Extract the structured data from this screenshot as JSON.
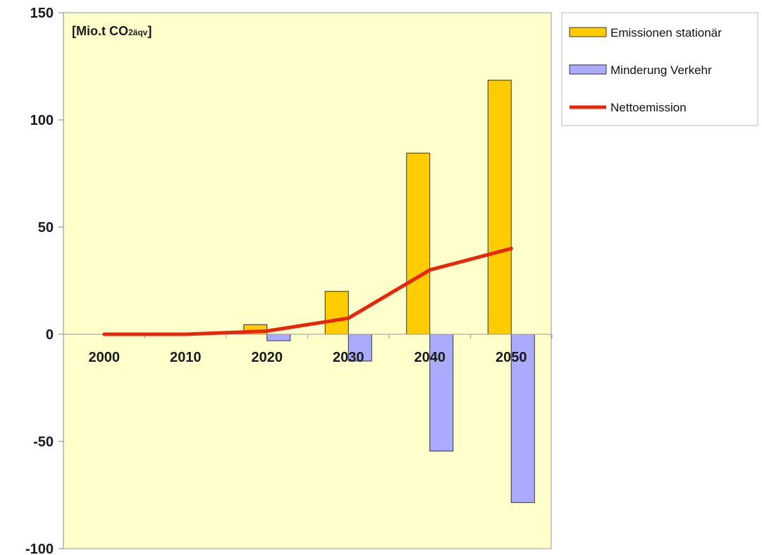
{
  "chart_data": {
    "type": "bar",
    "unit_label": {
      "main": "[Mio.t CO",
      "sub": "2äqv",
      "close": "]"
    },
    "categories": [
      "2000",
      "2010",
      "2020",
      "2030",
      "2040",
      "2050"
    ],
    "series": [
      {
        "name": "Emissionen stationär",
        "kind": "bar",
        "color": "#FFCC00",
        "values": [
          0,
          0,
          4.5,
          20,
          84.5,
          118.5
        ]
      },
      {
        "name": "Minderung Verkehr",
        "kind": "bar",
        "color": "#AAAAFF",
        "values": [
          0,
          0,
          -3,
          -12.5,
          -54.5,
          -78.5
        ]
      },
      {
        "name": "Nettoemission",
        "kind": "line",
        "color": "#E8260C",
        "values": [
          0,
          0,
          1.5,
          7.5,
          30,
          40
        ]
      }
    ],
    "ylim": [
      -100,
      150
    ],
    "yticks": [
      "150",
      "100",
      "50",
      "0",
      "-50",
      "-100"
    ],
    "ytick_values": [
      150,
      100,
      50,
      0,
      -50,
      -100
    ],
    "plot_background": "#FFFFCC",
    "grid": false,
    "legend_position": "right"
  }
}
